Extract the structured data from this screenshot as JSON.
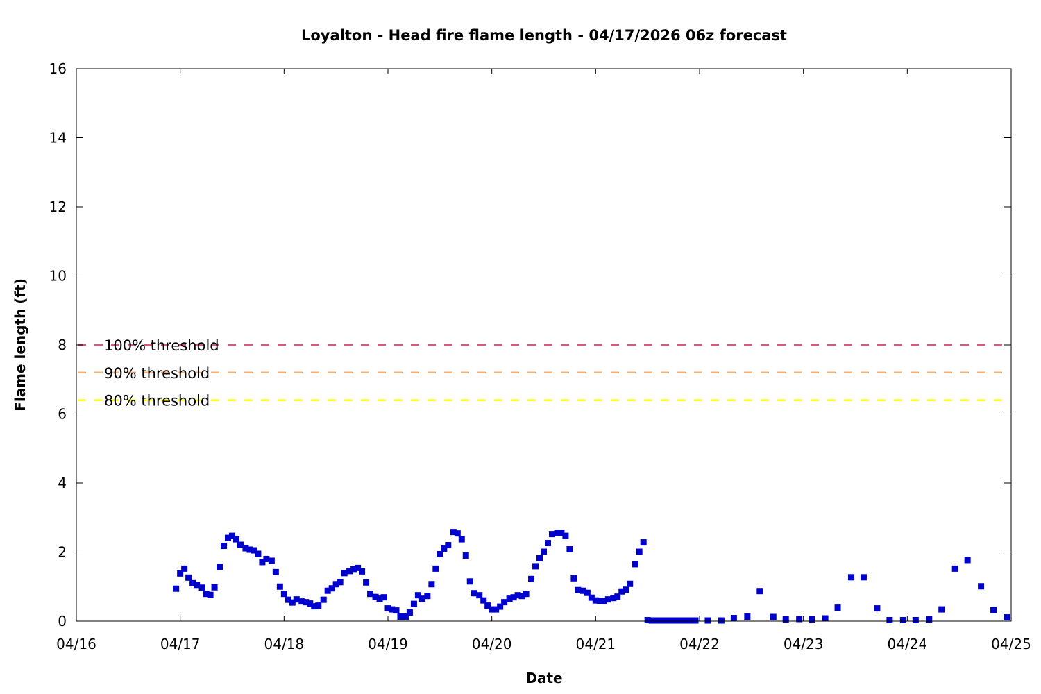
{
  "chart_data": {
    "type": "scatter",
    "title": "Loyalton - Head fire flame length - 04/17/2026 06z forecast",
    "xlabel": "Date",
    "ylabel": "Flame length (ft)",
    "x_unit": "days since 04/16 00z",
    "xlim": [
      "04/16",
      "04/25"
    ],
    "ylim": [
      0,
      16
    ],
    "x_ticks": [
      "04/16",
      "04/17",
      "04/18",
      "04/19",
      "04/20",
      "04/21",
      "04/22",
      "04/23",
      "04/24",
      "04/25"
    ],
    "y_ticks": [
      "0",
      "2",
      "4",
      "6",
      "8",
      "10",
      "12",
      "14",
      "16"
    ],
    "grid": false,
    "marker_color": "#0000cc",
    "thresholds": [
      {
        "label": "100% threshold",
        "value": 8.0,
        "color": "#d6597a"
      },
      {
        "label": "90% threshold",
        "value": 7.2,
        "color": "#f5b07a"
      },
      {
        "label": "80% threshold",
        "value": 6.4,
        "color": "#ffff00"
      }
    ],
    "series": [
      {
        "points": [
          [
            0.96,
            0.94
          ],
          [
            1.0,
            1.38
          ],
          [
            1.04,
            1.52
          ],
          [
            1.08,
            1.26
          ],
          [
            1.12,
            1.1
          ],
          [
            1.16,
            1.05
          ],
          [
            1.21,
            0.97
          ],
          [
            1.25,
            0.79
          ],
          [
            1.29,
            0.76
          ],
          [
            1.33,
            0.98
          ],
          [
            1.38,
            1.57
          ],
          [
            1.42,
            2.18
          ],
          [
            1.46,
            2.41
          ],
          [
            1.5,
            2.47
          ],
          [
            1.54,
            2.37
          ],
          [
            1.58,
            2.21
          ],
          [
            1.63,
            2.11
          ],
          [
            1.67,
            2.07
          ],
          [
            1.71,
            2.05
          ],
          [
            1.75,
            1.95
          ],
          [
            1.79,
            1.71
          ],
          [
            1.83,
            1.8
          ],
          [
            1.88,
            1.75
          ],
          [
            1.92,
            1.42
          ],
          [
            1.96,
            1.0
          ],
          [
            2.0,
            0.79
          ],
          [
            2.04,
            0.62
          ],
          [
            2.08,
            0.54
          ],
          [
            2.12,
            0.63
          ],
          [
            2.17,
            0.57
          ],
          [
            2.21,
            0.55
          ],
          [
            2.25,
            0.51
          ],
          [
            2.29,
            0.43
          ],
          [
            2.33,
            0.45
          ],
          [
            2.38,
            0.62
          ],
          [
            2.42,
            0.88
          ],
          [
            2.46,
            0.95
          ],
          [
            2.5,
            1.07
          ],
          [
            2.54,
            1.13
          ],
          [
            2.58,
            1.39
          ],
          [
            2.63,
            1.45
          ],
          [
            2.67,
            1.51
          ],
          [
            2.71,
            1.54
          ],
          [
            2.75,
            1.44
          ],
          [
            2.79,
            1.12
          ],
          [
            2.83,
            0.79
          ],
          [
            2.88,
            0.7
          ],
          [
            2.92,
            0.65
          ],
          [
            2.96,
            0.69
          ],
          [
            3.0,
            0.37
          ],
          [
            3.04,
            0.34
          ],
          [
            3.08,
            0.31
          ],
          [
            3.12,
            0.13
          ],
          [
            3.17,
            0.13
          ],
          [
            3.21,
            0.25
          ],
          [
            3.25,
            0.5
          ],
          [
            3.29,
            0.75
          ],
          [
            3.33,
            0.65
          ],
          [
            3.38,
            0.73
          ],
          [
            3.42,
            1.07
          ],
          [
            3.46,
            1.52
          ],
          [
            3.5,
            1.94
          ],
          [
            3.54,
            2.1
          ],
          [
            3.58,
            2.2
          ],
          [
            3.63,
            2.58
          ],
          [
            3.67,
            2.54
          ],
          [
            3.71,
            2.37
          ],
          [
            3.75,
            1.9
          ],
          [
            3.79,
            1.15
          ],
          [
            3.83,
            0.81
          ],
          [
            3.88,
            0.75
          ],
          [
            3.92,
            0.6
          ],
          [
            3.96,
            0.45
          ],
          [
            4.0,
            0.34
          ],
          [
            4.04,
            0.34
          ],
          [
            4.08,
            0.42
          ],
          [
            4.12,
            0.55
          ],
          [
            4.17,
            0.65
          ],
          [
            4.21,
            0.69
          ],
          [
            4.25,
            0.75
          ],
          [
            4.29,
            0.73
          ],
          [
            4.33,
            0.79
          ],
          [
            4.38,
            1.22
          ],
          [
            4.42,
            1.59
          ],
          [
            4.46,
            1.82
          ],
          [
            4.5,
            2.01
          ],
          [
            4.54,
            2.26
          ],
          [
            4.58,
            2.52
          ],
          [
            4.63,
            2.56
          ],
          [
            4.67,
            2.56
          ],
          [
            4.71,
            2.47
          ],
          [
            4.75,
            2.08
          ],
          [
            4.79,
            1.24
          ],
          [
            4.83,
            0.9
          ],
          [
            4.88,
            0.88
          ],
          [
            4.92,
            0.82
          ],
          [
            4.96,
            0.68
          ],
          [
            5.0,
            0.6
          ],
          [
            5.04,
            0.59
          ],
          [
            5.08,
            0.58
          ],
          [
            5.12,
            0.63
          ],
          [
            5.17,
            0.67
          ],
          [
            5.21,
            0.71
          ],
          [
            5.25,
            0.86
          ],
          [
            5.29,
            0.91
          ],
          [
            5.33,
            1.08
          ],
          [
            5.38,
            1.65
          ],
          [
            5.42,
            2.01
          ],
          [
            5.46,
            2.28
          ],
          [
            5.5,
            0.03
          ],
          [
            5.54,
            0.02
          ],
          [
            5.58,
            0.02
          ],
          [
            5.63,
            0.02
          ],
          [
            5.67,
            0.02
          ],
          [
            5.71,
            0.02
          ],
          [
            5.75,
            0.02
          ],
          [
            5.79,
            0.02
          ],
          [
            5.83,
            0.02
          ],
          [
            5.88,
            0.02
          ],
          [
            5.92,
            0.02
          ],
          [
            5.96,
            0.02
          ],
          [
            6.08,
            0.02
          ],
          [
            6.21,
            0.02
          ],
          [
            6.33,
            0.09
          ],
          [
            6.46,
            0.13
          ],
          [
            6.58,
            0.87
          ],
          [
            6.71,
            0.12
          ],
          [
            6.83,
            0.05
          ],
          [
            6.96,
            0.06
          ],
          [
            7.08,
            0.05
          ],
          [
            7.21,
            0.08
          ],
          [
            7.33,
            0.39
          ],
          [
            7.46,
            1.27
          ],
          [
            7.58,
            1.27
          ],
          [
            7.71,
            0.37
          ],
          [
            7.83,
            0.03
          ],
          [
            7.96,
            0.03
          ],
          [
            8.08,
            0.03
          ],
          [
            8.21,
            0.05
          ],
          [
            8.33,
            0.34
          ],
          [
            8.46,
            1.52
          ],
          [
            8.58,
            1.77
          ],
          [
            8.71,
            1.01
          ],
          [
            8.83,
            0.32
          ],
          [
            8.96,
            0.11
          ]
        ]
      }
    ]
  }
}
